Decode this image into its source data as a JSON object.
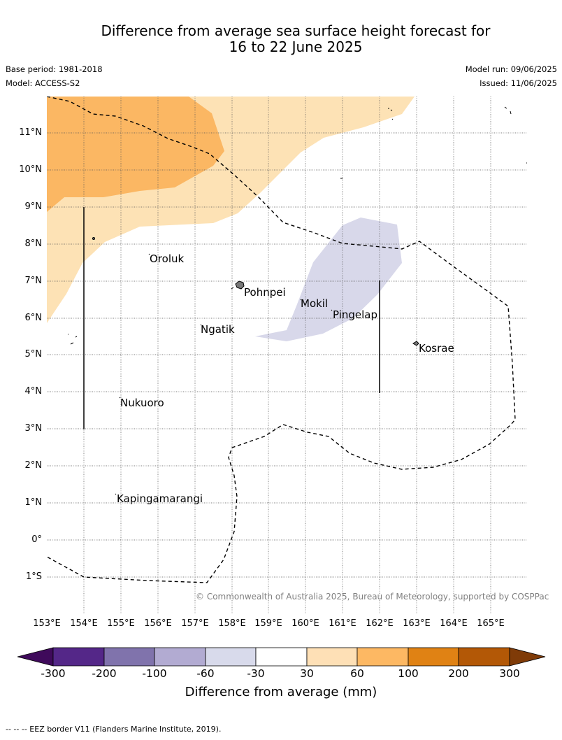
{
  "title": {
    "line1": "Difference from average sea surface height forecast for",
    "line2": "16 to 22 June 2025"
  },
  "meta": {
    "base_period": "Base period: 1981-2018",
    "model": "Model: ACCESS-S2",
    "model_run": "Model run: 09/06/2025",
    "issued": "Issued: 11/06/2025"
  },
  "map": {
    "lat_labels": [
      "11°N",
      "10°N",
      "9°N",
      "8°N",
      "7°N",
      "6°N",
      "5°N",
      "4°N",
      "3°N",
      "2°N",
      "1°N",
      "0°",
      "1°S"
    ],
    "lon_labels": [
      "153°E",
      "154°E",
      "155°E",
      "156°E",
      "157°E",
      "158°E",
      "159°E",
      "160°E",
      "161°E",
      "162°E",
      "163°E",
      "164°E",
      "165°E"
    ],
    "extent": {
      "lon": [
        153,
        166
      ],
      "lat": [
        -2,
        12
      ]
    },
    "places": [
      {
        "name": "Oroluk",
        "lon": 155.78,
        "lat": 7.65
      },
      {
        "name": "Pohnpei",
        "lon": 158.2,
        "lat": 6.9
      },
      {
        "name": "Mokil",
        "lon": 159.8,
        "lat": 6.65
      },
      {
        "name": "Pingelap",
        "lon": 160.7,
        "lat": 6.2
      },
      {
        "name": "Ngatik",
        "lon": 157.3,
        "lat": 5.8
      },
      {
        "name": "Kosrae",
        "lon": 163.0,
        "lat": 5.3
      },
      {
        "name": "Nukuoro",
        "lon": 154.95,
        "lat": 3.85
      },
      {
        "name": "Kapingamarangi",
        "lon": 154.8,
        "lat": 1.25
      }
    ],
    "credit": "© Commonwealth of Australia 2025, Bureau of Meteorology, supported by COSPPac",
    "colors": {
      "anom_30_60": "#fde2b5",
      "anom_60_100": "#fbb763",
      "anom_m60_m30": "#d8d8ea"
    }
  },
  "colorbar": {
    "ticks": [
      "-300",
      "-200",
      "-100",
      "-60",
      "-30",
      "30",
      "60",
      "100",
      "200",
      "300"
    ],
    "colors": [
      "#3f0a5b",
      "#542788",
      "#8073ac",
      "#b2abd2",
      "#d8daeb",
      "#ffffff",
      "#fee0b6",
      "#fdb863",
      "#e08214",
      "#b35806",
      "#7f3b08"
    ],
    "label": "Difference from average (mm)"
  },
  "footnote": "--  --  -- EEZ border V11 (Flanders Marine Institute, 2019)."
}
